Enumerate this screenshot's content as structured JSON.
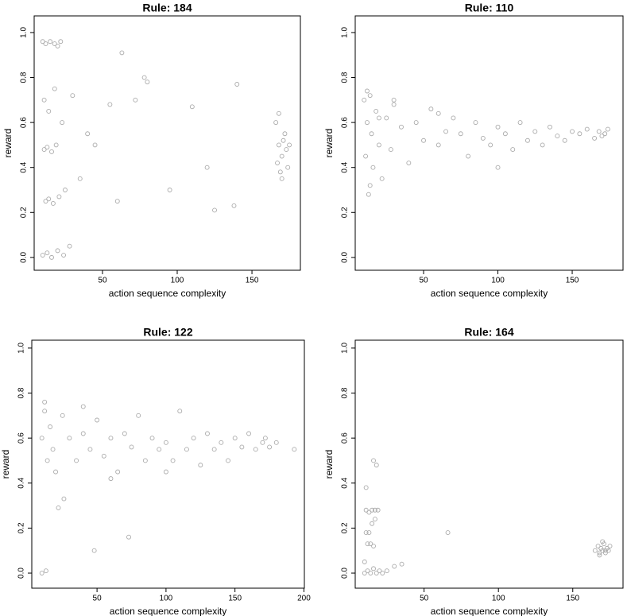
{
  "chart_data": [
    {
      "type": "scatter",
      "title": "Rule: 184",
      "x_label": "action sequence complexity",
      "y_label": "reward",
      "color": "#aaaaaa",
      "x": [
        10,
        12,
        15,
        18,
        20,
        22,
        11,
        13,
        16,
        19,
        12,
        14,
        17,
        21,
        25,
        10,
        13,
        16,
        20,
        24,
        28,
        11,
        14,
        18,
        23,
        30,
        35,
        40,
        45,
        55,
        63,
        72,
        78,
        95,
        110,
        120,
        125,
        138,
        140,
        60,
        80,
        168,
        170,
        172,
        174,
        166,
        169,
        171,
        173,
        167,
        170,
        175,
        168
      ],
      "values": [
        0.96,
        0.95,
        0.96,
        0.95,
        0.94,
        0.96,
        0.48,
        0.49,
        0.47,
        0.5,
        0.25,
        0.26,
        0.24,
        0.27,
        0.3,
        0.01,
        0.02,
        0.0,
        0.03,
        0.01,
        0.05,
        0.7,
        0.65,
        0.75,
        0.6,
        0.72,
        0.35,
        0.55,
        0.5,
        0.68,
        0.91,
        0.7,
        0.8,
        0.3,
        0.67,
        0.4,
        0.21,
        0.23,
        0.77,
        0.25,
        0.78,
        0.5,
        0.45,
        0.55,
        0.4,
        0.6,
        0.38,
        0.52,
        0.48,
        0.42,
        0.35,
        0.5,
        0.64
      ],
      "xlim": [
        4.3,
        182.4
      ],
      "ylim": [
        -0.057,
        1.074
      ],
      "xticks": [
        50,
        100,
        150
      ],
      "yticks": [
        {
          "value": 0,
          "label": "0.0"
        },
        0.2,
        0.4,
        0.6,
        0.8,
        {
          "value": 1,
          "label": "1.0"
        }
      ]
    },
    {
      "type": "scatter",
      "title": "Rule: 110",
      "x_label": "action sequence complexity",
      "y_label": "reward",
      "color": "#aaaaaa",
      "x": [
        10,
        11,
        12,
        13,
        14,
        15,
        16,
        18,
        20,
        22,
        25,
        28,
        30,
        35,
        40,
        45,
        50,
        55,
        60,
        65,
        70,
        75,
        80,
        85,
        90,
        95,
        100,
        105,
        110,
        115,
        120,
        125,
        130,
        135,
        140,
        145,
        150,
        155,
        160,
        165,
        168,
        170,
        172,
        174,
        12,
        14,
        20,
        30,
        60,
        100
      ],
      "values": [
        0.7,
        0.45,
        0.6,
        0.28,
        0.72,
        0.55,
        0.4,
        0.65,
        0.5,
        0.35,
        0.62,
        0.48,
        0.68,
        0.58,
        0.42,
        0.6,
        0.52,
        0.66,
        0.5,
        0.56,
        0.62,
        0.55,
        0.45,
        0.6,
        0.53,
        0.5,
        0.58,
        0.55,
        0.48,
        0.6,
        0.52,
        0.56,
        0.5,
        0.58,
        0.54,
        0.52,
        0.56,
        0.55,
        0.57,
        0.53,
        0.56,
        0.54,
        0.55,
        0.57,
        0.74,
        0.32,
        0.62,
        0.7,
        0.64,
        0.4
      ],
      "xlim": [
        4.0,
        184.2
      ],
      "ylim": [
        -0.057,
        1.074
      ],
      "xticks": [
        50,
        100,
        150
      ],
      "yticks": [
        {
          "value": 0,
          "label": "0.0"
        },
        0.2,
        0.4,
        0.6,
        0.8,
        {
          "value": 1,
          "label": "1.0"
        }
      ]
    },
    {
      "type": "scatter",
      "title": "Rule: 122",
      "x_label": "action sequence complexity",
      "y_label": "reward",
      "color": "#aaaaaa",
      "x": [
        10,
        12,
        14,
        16,
        18,
        20,
        25,
        30,
        35,
        40,
        45,
        50,
        55,
        60,
        65,
        70,
        75,
        80,
        85,
        90,
        95,
        100,
        105,
        110,
        115,
        120,
        125,
        130,
        135,
        140,
        145,
        150,
        155,
        160,
        165,
        170,
        172,
        175,
        180,
        193,
        10,
        13,
        48,
        73,
        22,
        26,
        12,
        40,
        60,
        100
      ],
      "values": [
        0.6,
        0.72,
        0.5,
        0.65,
        0.55,
        0.45,
        0.7,
        0.6,
        0.5,
        0.62,
        0.55,
        0.68,
        0.52,
        0.6,
        0.45,
        0.62,
        0.56,
        0.7,
        0.5,
        0.6,
        0.55,
        0.58,
        0.5,
        0.72,
        0.55,
        0.6,
        0.48,
        0.62,
        0.55,
        0.58,
        0.5,
        0.6,
        0.56,
        0.62,
        0.55,
        0.58,
        0.6,
        0.56,
        0.58,
        0.55,
        0.0,
        0.01,
        0.1,
        0.16,
        0.29,
        0.33,
        0.76,
        0.74,
        0.42,
        0.45
      ],
      "xlim": [
        2.7,
        200.3
      ],
      "ylim": [
        -0.067,
        1.035
      ],
      "xticks": [
        50,
        100,
        150,
        200
      ],
      "yticks": [
        {
          "value": 0,
          "label": "0.0"
        },
        0.2,
        0.4,
        0.6,
        0.8,
        {
          "value": 1,
          "label": "1.0"
        }
      ]
    },
    {
      "type": "scatter",
      "title": "Rule: 164",
      "x_label": "action sequence complexity",
      "y_label": "reward",
      "color": "#aaaaaa",
      "x": [
        10,
        12,
        14,
        16,
        18,
        20,
        22,
        11,
        13,
        15,
        17,
        19,
        12,
        14,
        16,
        10,
        11,
        13,
        15,
        17,
        16,
        18,
        11,
        66,
        35,
        30,
        25,
        165,
        167,
        168,
        169,
        170,
        171,
        172,
        173,
        174,
        175,
        168,
        170,
        172
      ],
      "values": [
        0.0,
        0.01,
        0.0,
        0.02,
        0.0,
        0.01,
        0.0,
        0.28,
        0.27,
        0.28,
        0.28,
        0.28,
        0.13,
        0.13,
        0.12,
        0.05,
        0.18,
        0.18,
        0.22,
        0.24,
        0.5,
        0.48,
        0.38,
        0.18,
        0.04,
        0.03,
        0.01,
        0.1,
        0.12,
        0.08,
        0.11,
        0.1,
        0.13,
        0.09,
        0.11,
        0.1,
        0.12,
        0.09,
        0.14,
        0.1
      ],
      "xlim": [
        3.7,
        183.8
      ],
      "ylim": [
        -0.067,
        1.035
      ],
      "xticks": [
        50,
        100,
        150
      ],
      "yticks": [
        {
          "value": 0,
          "label": "0.0"
        },
        0.2,
        0.4,
        0.6,
        0.8,
        {
          "value": 1,
          "label": "1.0"
        }
      ]
    }
  ]
}
